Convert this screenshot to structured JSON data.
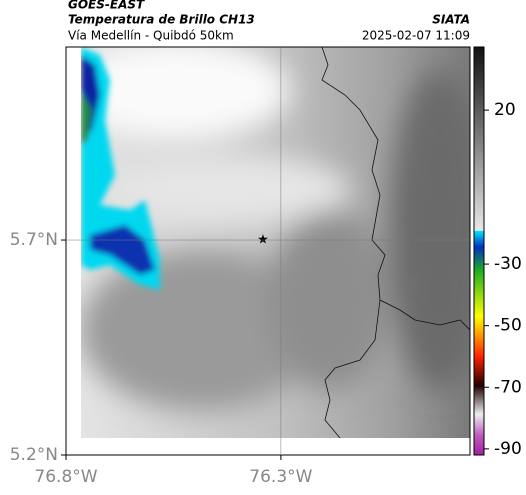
{
  "header": {
    "source": "GOES-EAST",
    "title": "Temperatura de Brillo CH13",
    "subtitle": "Vía Medellín - Quibdó 50km",
    "brand": "SIATA",
    "timestamp": "2025-02-07 11:09"
  },
  "map": {
    "xlim": [
      -76.8,
      -75.86
    ],
    "ylim": [
      5.2,
      6.149
    ],
    "xticks": [
      {
        "value": -76.8,
        "label": "76.8°W"
      },
      {
        "value": -76.3,
        "label": "76.3°W"
      }
    ],
    "yticks": [
      {
        "value": 5.2,
        "label": "5.2°N"
      },
      {
        "value": 5.7,
        "label": "5.7°N"
      }
    ],
    "grid": true
  },
  "colorbar": {
    "lim": [
      -92,
      40.5
    ],
    "ticks": [
      20,
      -30,
      -50,
      -70,
      -90
    ]
  }
}
